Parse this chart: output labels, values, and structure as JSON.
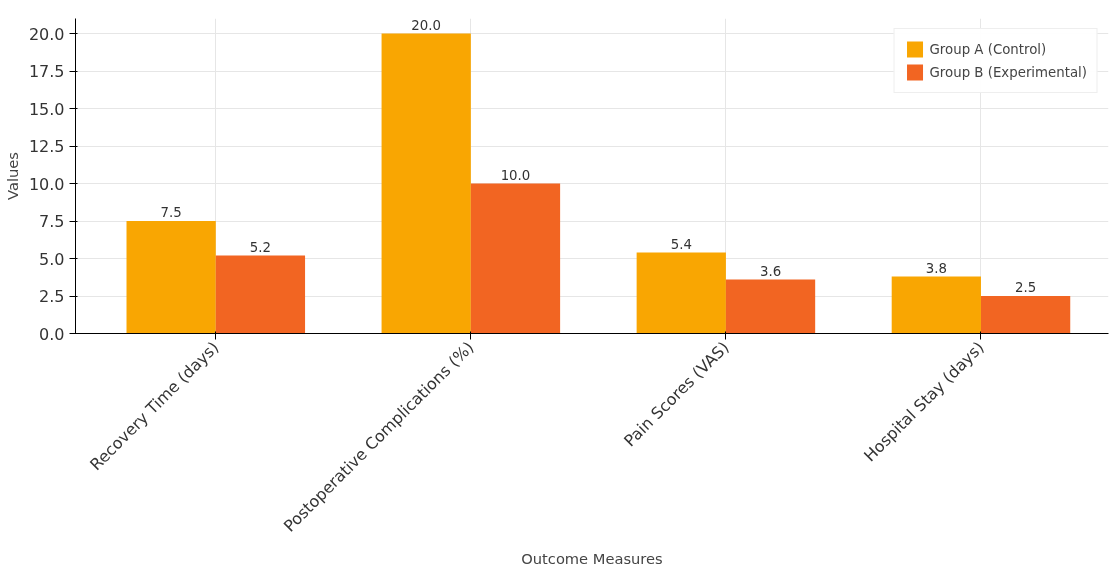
{
  "chart_data": {
    "type": "bar",
    "xlabel": "Outcome Measures",
    "ylabel": "Values",
    "categories": [
      "Recovery Time (days)",
      "Postoperative Complications (%)",
      "Pain Scores (VAS)",
      "Hospital Stay (days)"
    ],
    "series": [
      {
        "name": "Group A (Control)",
        "color": "#f9a602",
        "values": [
          7.5,
          20.0,
          5.4,
          3.8
        ],
        "value_labels": [
          "7.5",
          "20.0",
          "5.4",
          "3.8"
        ]
      },
      {
        "name": "Group B (Experimental)",
        "color": "#f26522",
        "values": [
          5.2,
          10.0,
          3.6,
          2.5
        ],
        "value_labels": [
          "5.2",
          "10.0",
          "3.6",
          "2.5"
        ]
      }
    ],
    "ylim": [
      0,
      21
    ],
    "yticks": [
      {
        "value": 0,
        "label": "0.0"
      },
      2.5,
      {
        "value": 5,
        "label": "5.0"
      },
      7.5,
      {
        "value": 10,
        "label": "10.0"
      },
      12.5,
      {
        "value": 15,
        "label": "15.0"
      },
      17.5,
      {
        "value": 20,
        "label": "20.0"
      }
    ],
    "grid": true,
    "legend": "top right"
  }
}
